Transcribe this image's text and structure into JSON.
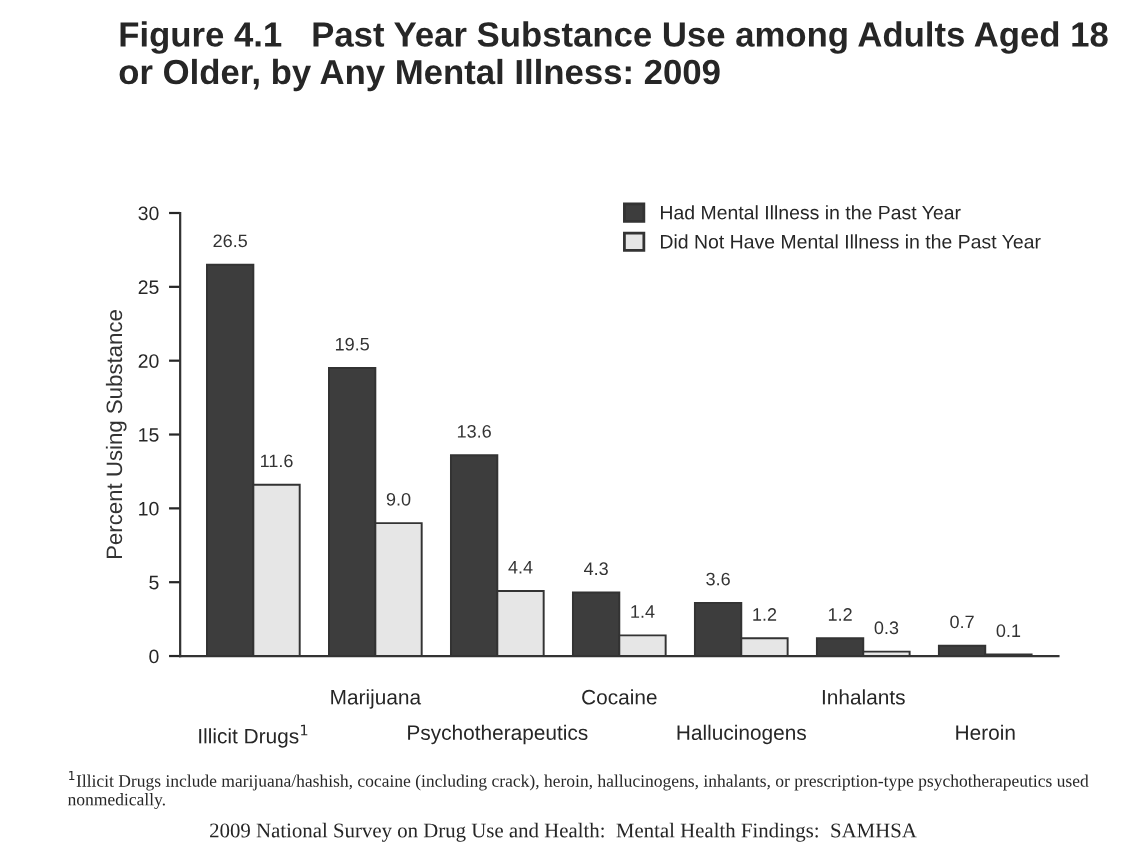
{
  "chart_data": {
    "type": "bar",
    "title": "Figure 4.1   Past Year Substance Use among Adults Aged 18 or Older, by Any Mental Illness: 2009",
    "ylabel": "Percent Using Substance",
    "categories": [
      "Illicit Drugs$^{1}$",
      "Marijuana",
      "Psychotherapeutics",
      "Cocaine",
      "Hallucinogens",
      "Inhalants",
      "Heroin"
    ],
    "series": [
      {
        "name": "Had Mental Illness in the Past Year",
        "color": "#3d3d3d",
        "values": [
          26.5,
          19.5,
          13.6,
          4.3,
          3.6,
          1.2,
          0.7
        ],
        "value_labels": [
          "26.5",
          "19.5",
          "13.6",
          "4.3",
          "3.6",
          "1.2",
          "0.7"
        ]
      },
      {
        "name": "Did Not Have Mental Illness in the Past Year",
        "color": "#e6e6e6",
        "values": [
          11.6,
          9.0,
          4.4,
          1.4,
          1.2,
          0.3,
          0.1
        ],
        "value_labels": [
          "11.6",
          "9.0",
          "4.4",
          "1.4",
          "1.2",
          "0.3",
          "0.1"
        ]
      }
    ],
    "ylim": [
      0,
      30
    ],
    "yticks": [
      0,
      5,
      10,
      15,
      20,
      25,
      30
    ],
    "grid": false,
    "legend": "top right",
    "annotations": [
      "$^{1}$Illicit Drugs include marijuana/hashish, cocaine (including crack), heroin, hallucinogens, inhalants, or prescription-type psychotherapeutics used nonmedically.",
      "2009 National Survey on Drug Use and Health:  Mental Health Findings:  SAMHSA"
    ]
  }
}
